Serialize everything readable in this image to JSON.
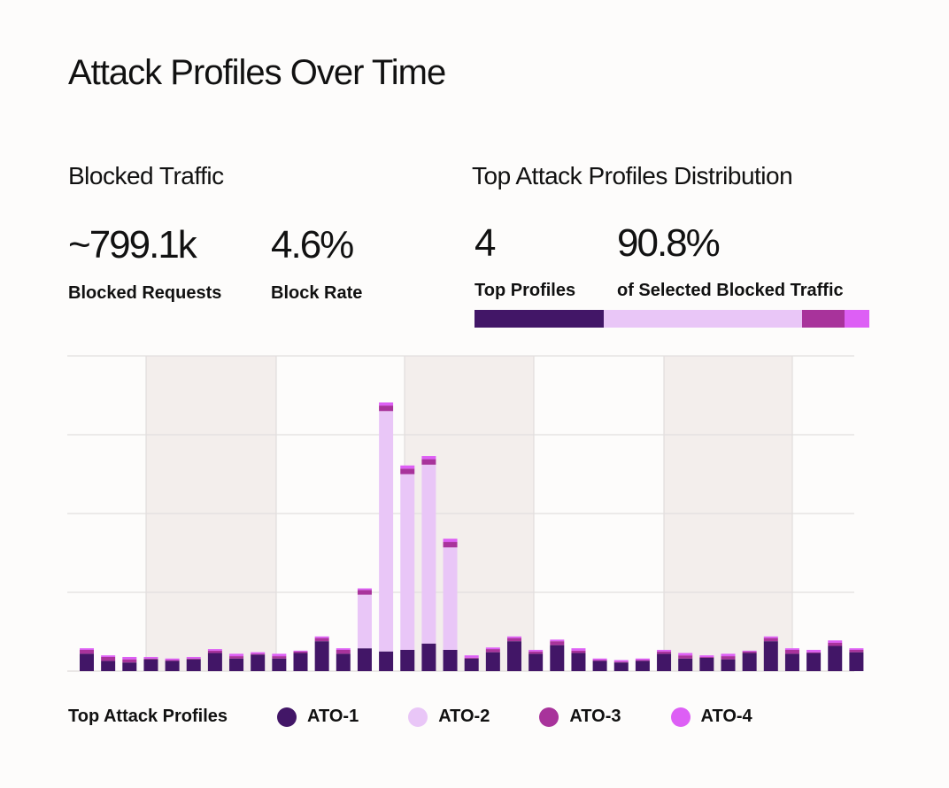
{
  "title": "Attack Profiles Over Time",
  "blocked_traffic": {
    "heading": "Blocked Traffic",
    "requests_value": "~799.1k",
    "requests_label": "Blocked Requests",
    "rate_value": "4.6%",
    "rate_label": "Block Rate"
  },
  "distribution": {
    "heading": "Top Attack Profiles Distribution",
    "count_value": "4",
    "count_label": "Top Profiles",
    "share_value": "90.8%",
    "share_label": "of Selected Blocked Traffic",
    "segments": [
      {
        "name": "ATO-1",
        "fraction": 0.327,
        "color": "#421667"
      },
      {
        "name": "ATO-2",
        "fraction": 0.502,
        "color": "#e9c6f7"
      },
      {
        "name": "ATO-3",
        "fraction": 0.108,
        "color": "#a8339b"
      },
      {
        "name": "ATO-4",
        "fraction": 0.063,
        "color": "#dd5ff5"
      }
    ]
  },
  "legend": {
    "title": "Top Attack Profiles",
    "items": [
      {
        "label": "ATO-1",
        "color": "#421667"
      },
      {
        "label": "ATO-2",
        "color": "#e9c6f7"
      },
      {
        "label": "ATO-3",
        "color": "#a8339b"
      },
      {
        "label": "ATO-4",
        "color": "#dd5ff5"
      }
    ]
  },
  "chart_data": {
    "type": "bar",
    "stacked": true,
    "title": "",
    "xlabel": "",
    "ylabel": "",
    "ylim": [
      0,
      4
    ],
    "grid": true,
    "gridlines": [
      1,
      2,
      3,
      4
    ],
    "shaded_bands": [
      [
        3,
        9
      ],
      [
        15,
        21
      ],
      [
        27,
        33
      ]
    ],
    "legend_position": "bottom",
    "categories": [
      "1",
      "2",
      "3",
      "4",
      "5",
      "6",
      "7",
      "8",
      "9",
      "10",
      "11",
      "12",
      "13",
      "14",
      "15",
      "16",
      "17",
      "18",
      "19",
      "20",
      "21",
      "22",
      "23",
      "24",
      "25",
      "26",
      "27",
      "28",
      "29",
      "30",
      "31",
      "32",
      "33",
      "34",
      "35",
      "36",
      "37"
    ],
    "series": [
      {
        "name": "ATO-1",
        "color": "#421667",
        "values": [
          0.22,
          0.13,
          0.11,
          0.15,
          0.13,
          0.15,
          0.23,
          0.16,
          0.21,
          0.16,
          0.23,
          0.38,
          0.22,
          0.29,
          0.25,
          0.27,
          0.35,
          0.27,
          0.16,
          0.24,
          0.38,
          0.22,
          0.33,
          0.23,
          0.13,
          0.11,
          0.13,
          0.22,
          0.16,
          0.17,
          0.15,
          0.23,
          0.38,
          0.22,
          0.23,
          0.32,
          0.24
        ]
      },
      {
        "name": "ATO-2",
        "color": "#e9c6f7",
        "values": [
          0,
          0,
          0,
          0,
          0,
          0,
          0,
          0,
          0,
          0,
          0,
          0,
          0,
          0.68,
          3.05,
          2.23,
          2.27,
          1.3,
          0,
          0,
          0,
          0,
          0,
          0,
          0,
          0,
          0,
          0,
          0,
          0,
          0,
          0,
          0,
          0,
          0,
          0,
          0
        ]
      },
      {
        "name": "ATO-3",
        "color": "#a8339b",
        "values": [
          0.05,
          0.05,
          0.04,
          0.01,
          0.01,
          0.01,
          0.03,
          0.03,
          0.01,
          0.03,
          0.02,
          0.04,
          0.05,
          0.06,
          0.07,
          0.07,
          0.07,
          0.07,
          0.01,
          0.04,
          0.04,
          0.03,
          0.05,
          0.03,
          0.01,
          0.01,
          0.01,
          0.03,
          0.04,
          0.01,
          0.04,
          0.02,
          0.04,
          0.05,
          0.01,
          0.04,
          0.03
        ]
      },
      {
        "name": "ATO-4",
        "color": "#dd5ff5",
        "values": [
          0.02,
          0.02,
          0.03,
          0.02,
          0.02,
          0.02,
          0.02,
          0.03,
          0.02,
          0.03,
          0.01,
          0.02,
          0.02,
          0.02,
          0.04,
          0.04,
          0.04,
          0.04,
          0.03,
          0.02,
          0.02,
          0.02,
          0.02,
          0.03,
          0.02,
          0.02,
          0.02,
          0.02,
          0.03,
          0.02,
          0.03,
          0.01,
          0.02,
          0.02,
          0.03,
          0.03,
          0.02
        ]
      }
    ]
  }
}
